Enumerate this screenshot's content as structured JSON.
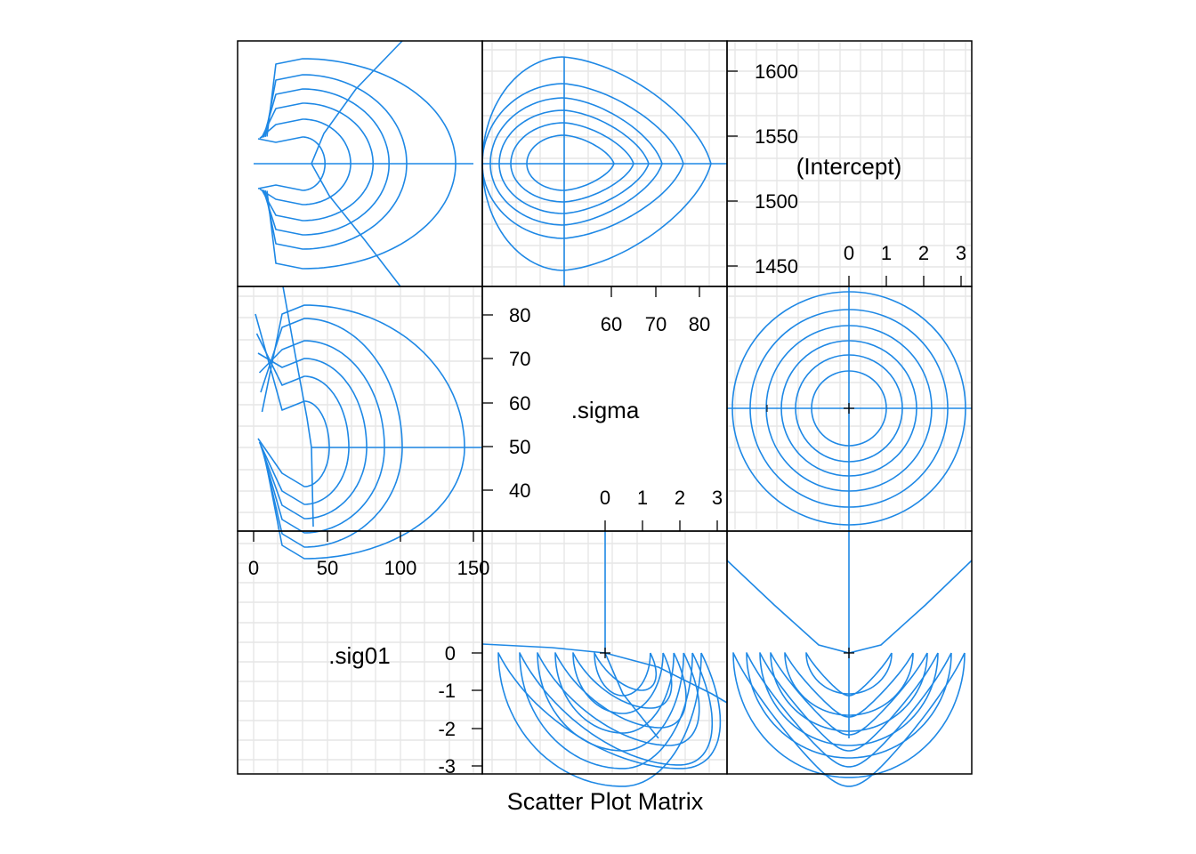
{
  "chart_data": {
    "type": "scatter_matrix",
    "xlabel": "Scatter Plot Matrix",
    "variables": [
      {
        "name": ".sig01",
        "ticks": [
          "0",
          "50",
          "100",
          "150"
        ],
        "zeta_ticks": [
          "0",
          "-1",
          "-2",
          "-3"
        ]
      },
      {
        "name": ".sigma",
        "ticks": [
          "40",
          "50",
          "60",
          "70",
          "80"
        ],
        "top_ticks": [
          "60",
          "70",
          "80"
        ],
        "zeta_ticks": [
          "0",
          "1",
          "2",
          "3"
        ]
      },
      {
        "name": "(Intercept)",
        "ticks": [
          "1450",
          "1500",
          "1550",
          "1600"
        ],
        "zeta_ticks": [
          "0",
          "1",
          "2",
          "3"
        ]
      }
    ],
    "estimates": {
      ".sig01": 37.3,
      ".sigma": 49.5,
      "(Intercept)": 1527.5
    },
    "contour_levels": 6,
    "grid": true,
    "colors": {
      "contour": "#1e88e5",
      "frame": "#000000",
      "grid": "#e6e6e6",
      "text": "#000000"
    }
  }
}
